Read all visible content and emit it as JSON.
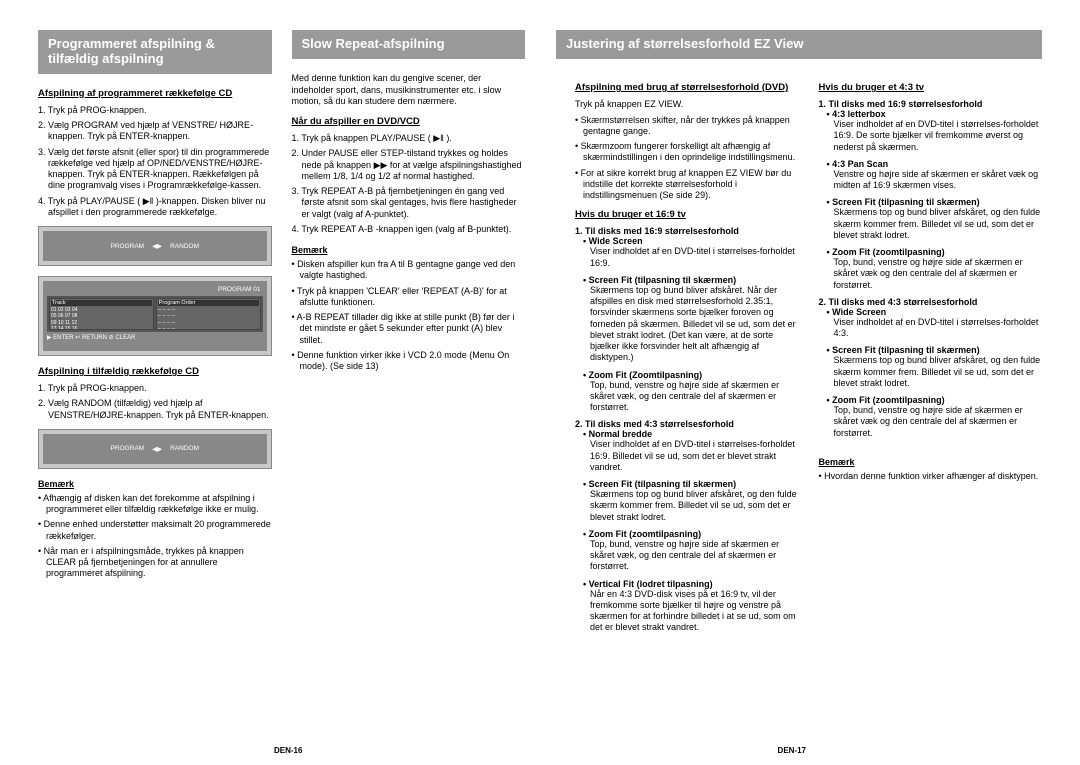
{
  "colors": {
    "headingBg": "#9a9a9a",
    "headingText": "#ffffff"
  },
  "left": {
    "col1": {
      "heading": "Programmeret afspilning & tilfældig afspilning",
      "sectionA": {
        "title": "Afspilning af programmeret rækkefølge CD",
        "steps": [
          "1. Tryk på PROG-knappen.",
          "2. Vælg PROGRAM ved hjælp af VENSTRE/ HØJRE-knappen. Tryk på ENTER-knappen.",
          "3. Vælg det første afsnit (eller spor) til din programmerede rækkefølge ved hjælp af OP/NED/VENSTRE/HØJRE-knappen. Tryk på ENTER-knappen. Rækkefølgen på dine programvalg vises i Programrækkefølge-kassen.",
          "4. Tryk på PLAY/PAUSE ( ▶‖ )-knappen. Disken bliver nu afspillet i den programmerede rækkefølge."
        ]
      },
      "screenshotTop": {
        "topLeft": "PROGRAM",
        "topRight": "RANDOM"
      },
      "screenshotMain": {
        "title": "PROGRAM 01",
        "leftHeader": "Track",
        "rightHeader": "Program  Order",
        "tracks": [
          "01 02 03 04",
          "05 06 07 08",
          "09 10 11 12",
          "13 14 15 16"
        ],
        "bottom": "▶ ENTER    ↩ RETURN   ⊘ CLEAR"
      },
      "sectionB": {
        "title": "Afspilning i tilfældig rækkefølge CD",
        "steps": [
          "1. Tryk på PROG-knappen.",
          "2. Vælg RANDOM (tilfældig) ved hjælp af VENSTRE/HØJRE-knappen. Tryk på ENTER-knappen."
        ]
      },
      "screenshot2": {
        "left": "PROGRAM",
        "right": "RANDOM"
      },
      "remark": {
        "title": "Bemærk",
        "items": [
          "Afhængig af disken kan det forekomme at afspilning i programmeret eller tilfældig rækkefølge ikke er mulig.",
          "Denne enhed understøtter maksimalt 20 programmerede rækkefølger.",
          "Når man er i afspilningsmåde, trykkes på knappen CLEAR på fjernbetjeningen for at annullere programmeret afspilning."
        ]
      }
    },
    "col2": {
      "heading": "Slow Repeat-afspilning",
      "intro": "Med denne funktion kan du gengive scener, der indeholder sport, dans, musikinstrumenter etc. i slow motion, så du kan studere dem nærmere.",
      "sectionA": {
        "title": "Når du afspiller en DVD/VCD",
        "steps": [
          "1. Tryk på knappen PLAY/PAUSE ( ▶‖ ).",
          "2. Under PAUSE eller STEP-tilstand trykkes og holdes nede på knappen ▶▶ for at vælge afspilningshastighed mellem 1/8, 1/4 og 1/2 af normal hastighed.",
          "3. Tryk REPEAT A-B på fjernbetjeningen én gang ved første afsnit som skal gentages, hvis flere hastigheder er valgt (valg af A-punktet).",
          "4. Tryk REPEAT A-B -knappen igen (valg af B-punktet)."
        ]
      },
      "remark": {
        "title": "Bemærk",
        "items": [
          "Disken afspiller kun fra A til B gentagne gange ved den valgte hastighed.",
          "Tryk på knappen 'CLEAR' eller 'REPEAT (A-B)' for at afslutte funktionen.",
          "A-B REPEAT tillader dig ikke at stille punkt (B) før der i det mindste er gået 5 sekunder efter punkt (A) blev stillet.",
          "Denne funktion virker ikke i VCD 2.0 mode (Menu On mode). (Se side 13)"
        ]
      }
    },
    "footer": "DEN-16"
  },
  "right": {
    "heading": "Justering af størrelsesforhold EZ View",
    "col1": {
      "sectionA": {
        "title": "Afspilning med brug af størrelsesforhold (DVD)",
        "intro": "Tryk på knappen EZ VIEW.",
        "items": [
          "Skærmstørrelsen skifter, når der trykkes på knappen gentagne gange.",
          "Skærmzoom fungerer forskelligt alt afhængig af skærmindstillingen i den oprindelige indstillingsmenu.",
          "For at sikre korrekt brug af knappen EZ VIEW bør du indstille det korrekte størrelsesforhold i indstillingsmenuen (Se side 29)."
        ]
      },
      "sectionB": {
        "title": "Hvis du bruger et 16:9 tv",
        "group1": {
          "title": "1. Til disks med 16:9 størrelsesforhold",
          "items": [
            {
              "label": "• Wide Screen",
              "desc": "Viser indholdet af en DVD-titel i størrelses-forholdet 16:9."
            },
            {
              "label": "• Screen Fit (tilpasning til skærmen)",
              "desc": "Skærmens top og bund bliver afskåret. Når der afspilles en disk med størrelsesforhold 2.35:1, forsvinder skærmens sorte bjælker foroven og forneden på skærmen. Billedet vil se ud, som det er blevet strakt lodret. (Det kan være, at de sorte bjælker ikke forsvinder helt alt afhængig af disktypen.)"
            },
            {
              "label": "• Zoom Fit (Zoomtilpasning)",
              "desc": "Top, bund, venstre og højre side af skærmen er skåret væk, og den centrale del af skærmen er forstørret."
            }
          ]
        },
        "group2": {
          "title": "2. Til disks med 4:3 størrelsesforhold",
          "items": [
            {
              "label": "• Normal bredde",
              "desc": "Viser indholdet af en DVD-titel i størrelses-forholdet 16:9. Billedet vil se ud, som det er blevet strakt vandret."
            },
            {
              "label": "• Screen Fit (tilpasning til skærmen)",
              "desc": "Skærmens top og bund bliver afskåret, og den fulde skærm kommer frem. Billedet vil se ud, som det er blevet strakt lodret."
            },
            {
              "label": "• Zoom Fit (zoomtilpasning)",
              "desc": "Top, bund, venstre og højre side af skærmen er skåret væk, og den centrale del af skærmen er forstørret."
            },
            {
              "label": "• Vertical Fit (lodret tilpasning)",
              "desc": "Når en 4:3 DVD-disk vises på et 16:9 tv, vil der fremkomme sorte bjælker til højre og venstre på skærmen for at forhindre billedet i at se ud, som om det er blevet strakt vandret."
            }
          ]
        }
      }
    },
    "col2": {
      "sectionA": {
        "title": "Hvis du bruger et 4:3 tv",
        "group1": {
          "title": "1. Til disks med 16:9 størrelsesforhold",
          "items": [
            {
              "label": "• 4:3 letterbox",
              "desc": "Viser indholdet af en DVD-titel i størrelses-forholdet 16:9. De sorte bjælker vil fremkomme øverst og nederst på skærmen."
            },
            {
              "label": "• 4:3 Pan Scan",
              "desc": "Venstre og højre side af skærmen er skåret væk og midten af 16:9 skærmen vises."
            },
            {
              "label": "• Screen Fit (tilpasning til skærmen)",
              "desc": "Skærmens top og bund bliver afskåret, og den fulde skærm kommer frem. Billedet vil se ud, som det er blevet strakt lodret."
            },
            {
              "label": "• Zoom Fit (zoomtilpasning)",
              "desc": "Top, bund, venstre og højre side af skærmen er skåret væk og den centrale del af skærmen er forstørret."
            }
          ]
        },
        "group2": {
          "title": "2. Til disks med 4:3 størrelsesforhold",
          "items": [
            {
              "label": "• Wide Screen",
              "desc": "Viser indholdet af en DVD-titel i størrelses-forholdet 4:3."
            },
            {
              "label": "• Screen Fit (tilpasning til skærmen)",
              "desc": "Skærmens top og bund bliver afskåret, og den fulde skærm kommer frem. Billedet vil se ud, som det er blevet strakt lodret."
            },
            {
              "label": "• Zoom Fit (zoomtilpasning)",
              "desc": "Top, bund, venstre og højre side af skærmen er skåret væk og den centrale del af skærmen er forstørret."
            }
          ]
        }
      },
      "remark": {
        "title": "Bemærk",
        "items": [
          "Hvordan denne funktion virker afhænger af disktypen."
        ]
      }
    },
    "footer": "DEN-17"
  }
}
